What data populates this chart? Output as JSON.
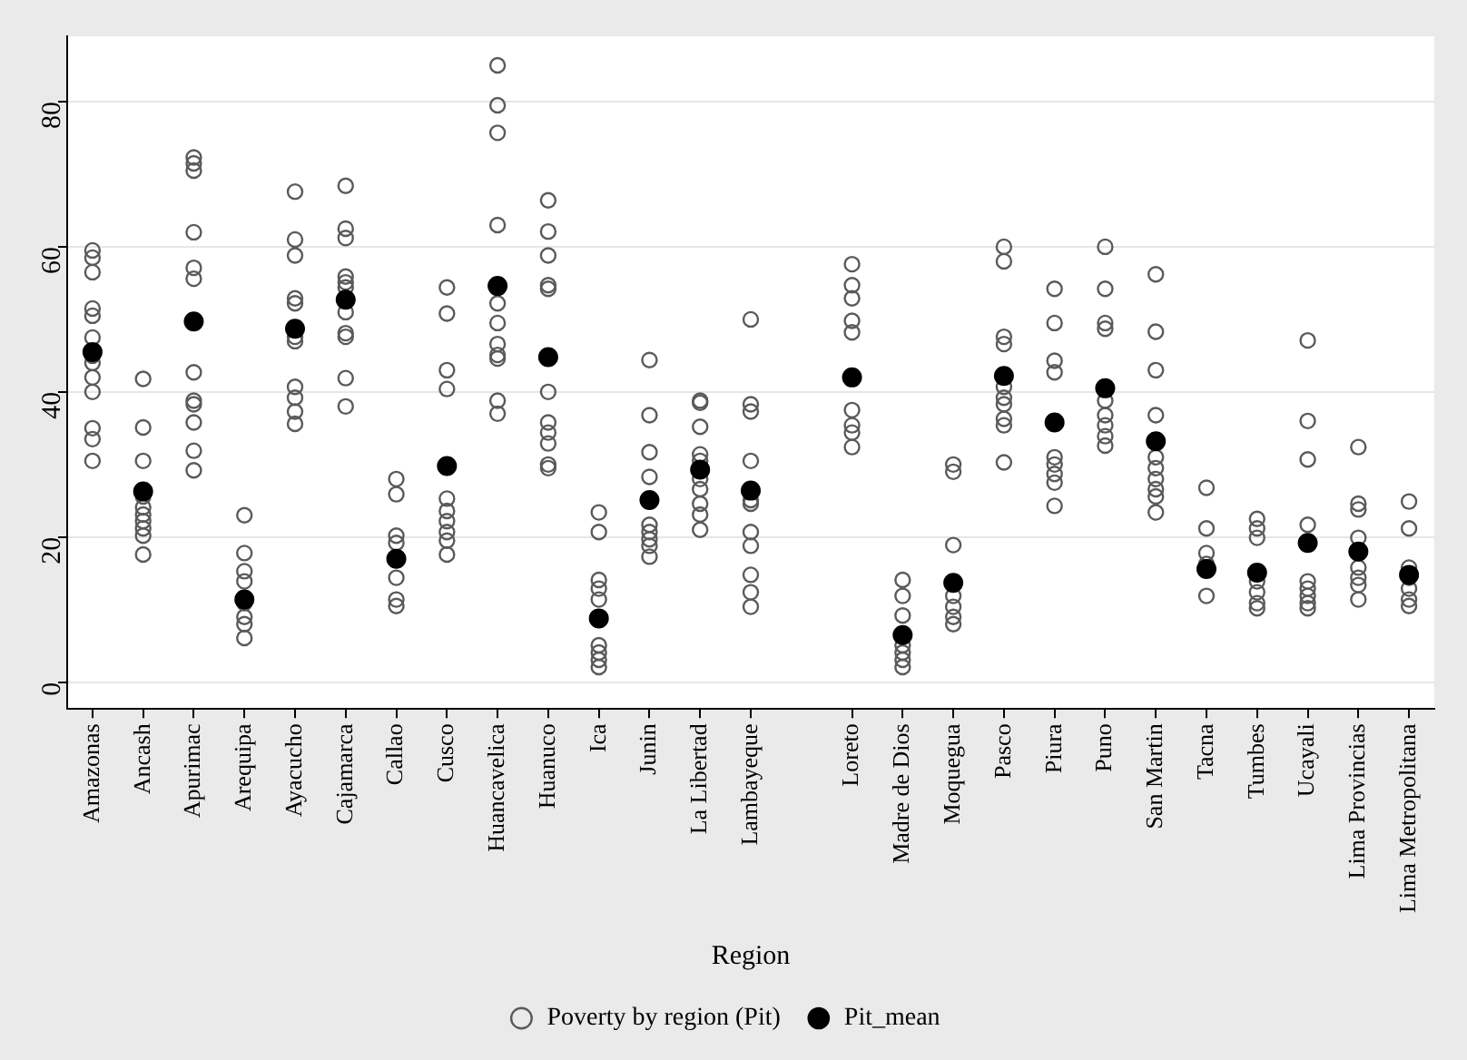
{
  "chart_data": {
    "type": "scatter",
    "categories": [
      "Amazonas",
      "Ancash",
      "Apurimac",
      "Arequipa",
      "Ayacucho",
      "Cajamarca",
      "Callao",
      "Cusco",
      "Huancavelica",
      "Huanuco",
      "Ica",
      "Junin",
      "La Libertad",
      "Lambayeque",
      null,
      "Loreto",
      "Madre de Dios",
      "Moquegua",
      "Pasco",
      "Piura",
      "Puno",
      "San Martin",
      "Tacna",
      "Tumbes",
      "Ucayali",
      "Lima Provincias",
      "Lima Metropolitana"
    ],
    "xlabel": "Region",
    "ylim": [
      -3.7,
      89
    ],
    "yticks": [
      0,
      20,
      40,
      60,
      80
    ],
    "grid": "y",
    "legend": "bottom",
    "marker": "circle",
    "series": [
      {
        "name": "Poverty by region (Pit)",
        "color": "#5a5a5a",
        "x": [
          "Amazonas",
          "Amazonas",
          "Amazonas",
          "Amazonas",
          "Amazonas",
          "Amazonas",
          "Amazonas",
          "Amazonas",
          "Amazonas",
          "Amazonas",
          "Amazonas",
          "Amazonas",
          "Amazonas",
          "Ancash",
          "Ancash",
          "Ancash",
          "Ancash",
          "Ancash",
          "Ancash",
          "Ancash",
          "Ancash",
          "Ancash",
          "Ancash",
          "Apurimac",
          "Apurimac",
          "Apurimac",
          "Apurimac",
          "Apurimac",
          "Apurimac",
          "Apurimac",
          "Apurimac",
          "Apurimac",
          "Apurimac",
          "Apurimac",
          "Apurimac",
          "Arequipa",
          "Arequipa",
          "Arequipa",
          "Arequipa",
          "Arequipa",
          "Arequipa",
          "Arequipa",
          "Arequipa",
          "Ayacucho",
          "Ayacucho",
          "Ayacucho",
          "Ayacucho",
          "Ayacucho",
          "Ayacucho",
          "Ayacucho",
          "Ayacucho",
          "Ayacucho",
          "Ayacucho",
          "Ayacucho",
          "Cajamarca",
          "Cajamarca",
          "Cajamarca",
          "Cajamarca",
          "Cajamarca",
          "Cajamarca",
          "Cajamarca",
          "Cajamarca",
          "Cajamarca",
          "Cajamarca",
          "Cajamarca",
          "Callao",
          "Callao",
          "Callao",
          "Callao",
          "Callao",
          "Callao",
          "Callao",
          "Cusco",
          "Cusco",
          "Cusco",
          "Cusco",
          "Cusco",
          "Cusco",
          "Cusco",
          "Cusco",
          "Cusco",
          "Cusco",
          "Huancavelica",
          "Huancavelica",
          "Huancavelica",
          "Huancavelica",
          "Huancavelica",
          "Huancavelica",
          "Huancavelica",
          "Huancavelica",
          "Huancavelica",
          "Huancavelica",
          "Huancavelica",
          "Huanuco",
          "Huanuco",
          "Huanuco",
          "Huanuco",
          "Huanuco",
          "Huanuco",
          "Huanuco",
          "Huanuco",
          "Huanuco",
          "Huanuco",
          "Huanuco",
          "Ica",
          "Ica",
          "Ica",
          "Ica",
          "Ica",
          "Ica",
          "Ica",
          "Ica",
          "Ica",
          "Junin",
          "Junin",
          "Junin",
          "Junin",
          "Junin",
          "Junin",
          "Junin",
          "Junin",
          "Junin",
          "La Libertad",
          "La Libertad",
          "La Libertad",
          "La Libertad",
          "La Libertad",
          "La Libertad",
          "La Libertad",
          "La Libertad",
          "La Libertad",
          "La Libertad",
          "Lambayeque",
          "Lambayeque",
          "Lambayeque",
          "Lambayeque",
          "Lambayeque",
          "Lambayeque",
          "Lambayeque",
          "Lambayeque",
          "Lambayeque",
          "Lambayeque",
          "Lambayeque",
          "Loreto",
          "Loreto",
          "Loreto",
          "Loreto",
          "Loreto",
          "Loreto",
          "Loreto",
          "Loreto",
          "Loreto",
          "Madre de Dios",
          "Madre de Dios",
          "Madre de Dios",
          "Madre de Dios",
          "Madre de Dios",
          "Madre de Dios",
          "Madre de Dios",
          "Moquegua",
          "Moquegua",
          "Moquegua",
          "Moquegua",
          "Moquegua",
          "Moquegua",
          "Moquegua",
          "Pasco",
          "Pasco",
          "Pasco",
          "Pasco",
          "Pasco",
          "Pasco",
          "Pasco",
          "Pasco",
          "Pasco",
          "Pasco",
          "Piura",
          "Piura",
          "Piura",
          "Piura",
          "Piura",
          "Piura",
          "Piura",
          "Piura",
          "Piura",
          "Puno",
          "Puno",
          "Puno",
          "Puno",
          "Puno",
          "Puno",
          "Puno",
          "Puno",
          "Puno",
          "San Martin",
          "San Martin",
          "San Martin",
          "San Martin",
          "San Martin",
          "San Martin",
          "San Martin",
          "San Martin",
          "San Martin",
          "San Martin",
          "Tacna",
          "Tacna",
          "Tacna",
          "Tacna",
          "Tacna",
          "Tumbes",
          "Tumbes",
          "Tumbes",
          "Tumbes",
          "Tumbes",
          "Tumbes",
          "Tumbes",
          "Ucayali",
          "Ucayali",
          "Ucayali",
          "Ucayali",
          "Ucayali",
          "Ucayali",
          "Ucayali",
          "Ucayali",
          "Ucayali",
          "Lima Provincias",
          "Lima Provincias",
          "Lima Provincias",
          "Lima Provincias",
          "Lima Provincias",
          "Lima Provincias",
          "Lima Provincias",
          "Lima Provincias",
          "Lima Metropolitana",
          "Lima Metropolitana",
          "Lima Metropolitana",
          "Lima Metropolitana",
          "Lima Metropolitana",
          "Lima Metropolitana",
          "Lima Metropolitana"
        ],
        "values": [
          59.5,
          58.5,
          56.5,
          51.5,
          50.5,
          47.5,
          45,
          44,
          42,
          40,
          35,
          33.5,
          30.5,
          41.8,
          35.1,
          30.5,
          25.6,
          24.1,
          23.1,
          22.2,
          21.2,
          20.2,
          17.6,
          72.3,
          71.5,
          70.5,
          62,
          57.1,
          55.6,
          42.7,
          38.8,
          38.3,
          35.8,
          31.9,
          29.2,
          23,
          17.8,
          15.3,
          13.9,
          10.9,
          9,
          8,
          6.1,
          67.6,
          61,
          58.8,
          52.9,
          52.2,
          47.6,
          47,
          40.7,
          39.2,
          37.3,
          35.6,
          68.4,
          62.5,
          61.2,
          55.9,
          55.1,
          54.4,
          51,
          48.1,
          47.6,
          41.9,
          38,
          28,
          25.9,
          20.2,
          19.2,
          14.4,
          11.4,
          10.5,
          54.4,
          50.8,
          43,
          40.4,
          25.3,
          23.6,
          22.2,
          20.7,
          19.5,
          17.6,
          85,
          79.5,
          75.7,
          63,
          52.2,
          49.5,
          46.6,
          45.1,
          44.6,
          38.8,
          37,
          66.4,
          62.1,
          58.8,
          54.7,
          54.2,
          40,
          35.8,
          34.4,
          32.9,
          30,
          29.5,
          23.4,
          20.7,
          14.1,
          12.9,
          11.4,
          5.1,
          4.1,
          3.1,
          2.1,
          44.4,
          36.8,
          31.7,
          28.3,
          21.7,
          20.7,
          19.7,
          18.8,
          17.3,
          38.8,
          38.5,
          35.2,
          31.4,
          30.5,
          28,
          26.6,
          24.6,
          23.1,
          21,
          50,
          38.3,
          37.3,
          30.5,
          25.1,
          24.6,
          20.7,
          18.8,
          14.8,
          12.4,
          10.4,
          57.6,
          54.7,
          52.9,
          49.8,
          48.2,
          37.5,
          35.4,
          34.4,
          32.4,
          14.1,
          11.9,
          9.2,
          5.1,
          4.1,
          3.1,
          2.1,
          30,
          29,
          18.9,
          11.9,
          10.4,
          9,
          8,
          60,
          58,
          47.6,
          46.6,
          40.7,
          39.2,
          38.3,
          36.3,
          35.4,
          30.3,
          54.2,
          49.5,
          44.3,
          42.7,
          31,
          30,
          28.7,
          27.5,
          24.3,
          60,
          54.2,
          49.5,
          48.7,
          38.8,
          36.8,
          35.4,
          33.9,
          32.6,
          56.2,
          48.3,
          43,
          36.8,
          31,
          29.5,
          28,
          26.6,
          25.6,
          23.4,
          26.8,
          21.2,
          17.8,
          16.3,
          11.9,
          22.5,
          21.2,
          19.9,
          13.9,
          12.4,
          10.9,
          10.2,
          47.1,
          36,
          30.7,
          21.7,
          13.9,
          12.9,
          11.9,
          10.9,
          10.2,
          32.4,
          24.6,
          23.8,
          19.9,
          15.8,
          14.4,
          13.4,
          11.4,
          24.9,
          21.2,
          15.8,
          14.4,
          12.9,
          11.4,
          10.5
        ]
      },
      {
        "name": "Pit_mean",
        "color": "#000000",
        "x": [
          "Amazonas",
          "Ancash",
          "Apurimac",
          "Arequipa",
          "Ayacucho",
          "Cajamarca",
          "Callao",
          "Cusco",
          "Huancavelica",
          "Huanuco",
          "Ica",
          "Junin",
          "La Libertad",
          "Lambayeque",
          "Loreto",
          "Madre de Dios",
          "Moquegua",
          "Pasco",
          "Piura",
          "Puno",
          "San Martin",
          "Tacna",
          "Tumbes",
          "Ucayali",
          "Lima Provincias",
          "Lima Metropolitana"
        ],
        "values": [
          45.5,
          26.3,
          49.7,
          11.4,
          48.7,
          52.7,
          17,
          29.8,
          54.6,
          44.8,
          8.8,
          25.1,
          29.3,
          26.4,
          42,
          6.5,
          13.7,
          42.2,
          35.8,
          40.5,
          33.2,
          15.6,
          15.1,
          19.2,
          18,
          14.8
        ]
      }
    ]
  }
}
